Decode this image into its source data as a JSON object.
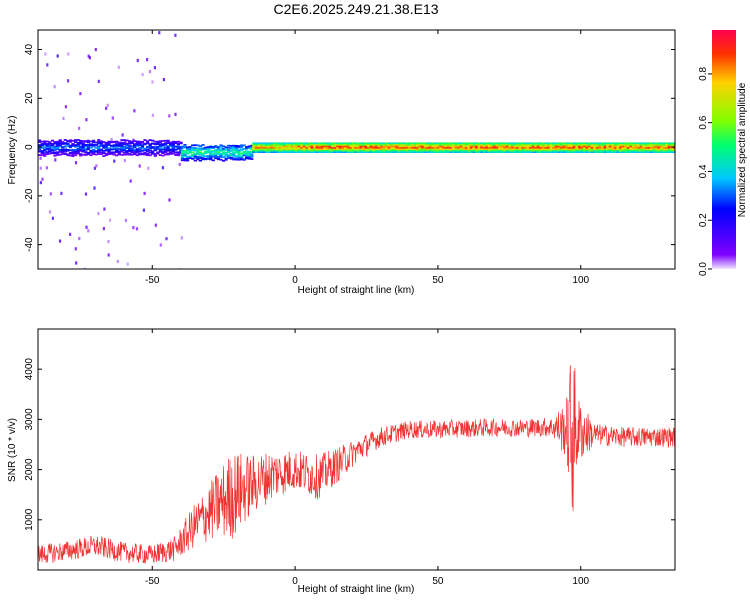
{
  "chart_data": [
    {
      "type": "heatmap",
      "title": "C2E6.2025.249.21.38.E13",
      "xlabel": "Height of straight line (km)",
      "ylabel": "Frequency (Hz)",
      "xlim": [
        -90,
        133
      ],
      "ylim": [
        -50,
        48
      ],
      "xticks": [
        -50,
        0,
        50,
        100
      ],
      "yticks": [
        -40,
        -20,
        0,
        20,
        40
      ],
      "colorbar": {
        "label": "Normalized spectral amplitude",
        "range": [
          0,
          0.98
        ],
        "ticks": [
          "0.0",
          "0.2",
          "0.4",
          "0.6",
          "0.8"
        ],
        "colors": [
          "#f0e6ff",
          "#7f00ff",
          "#0000ff",
          "#00c8ff",
          "#00ff6e",
          "#82ff00",
          "#ffd200",
          "#ff3200",
          "#ff0050"
        ]
      },
      "segments": [
        {
          "x": [
            -90,
            -40
          ],
          "freq_center": 0,
          "band_halfwidth_hz": 3,
          "peak_amplitude": 0.35,
          "scatter_y": [
            -50,
            48
          ],
          "scatter_amplitude": 0.15
        },
        {
          "x": [
            -40,
            -15
          ],
          "freq_center": -2,
          "band_halfwidth_hz": 3,
          "peak_amplitude": 0.55
        },
        {
          "x": [
            -15,
            0
          ],
          "freq_center": 0,
          "band_halfwidth_hz": 2,
          "peak_amplitude": 0.9
        },
        {
          "x": [
            0,
            133
          ],
          "freq_center": 0,
          "band_halfwidth_hz": 2,
          "peak_amplitude": 0.98
        }
      ]
    },
    {
      "type": "line",
      "xlabel": "Height of straight line (km)",
      "ylabel": "SNR (10 * v/v)",
      "xlim": [
        -90,
        133
      ],
      "ylim": [
        0,
        4800
      ],
      "xticks": [
        -50,
        0,
        50,
        100
      ],
      "yticks": [
        1000,
        2000,
        3000,
        4000
      ],
      "color": "#f03232",
      "series": [
        {
          "x": [
            -90,
            -80,
            -70,
            -60,
            -50,
            -42,
            -35,
            -28,
            -22,
            -15,
            -8,
            0,
            8,
            15,
            22,
            30,
            40,
            50,
            60,
            70,
            80,
            90,
            95,
            97,
            99,
            105,
            115,
            125,
            133
          ],
          "y": [
            300,
            380,
            480,
            350,
            300,
            420,
            900,
            1250,
            1500,
            1700,
            1900,
            2000,
            1850,
            2100,
            2400,
            2650,
            2800,
            2800,
            2820,
            2840,
            2830,
            2850,
            2800,
            2750,
            2780,
            2700,
            2650,
            2650,
            2650
          ],
          "noise": [
            200,
            200,
            220,
            200,
            200,
            250,
            450,
            650,
            900,
            600,
            500,
            400,
            450,
            350,
            250,
            200,
            180,
            180,
            180,
            180,
            180,
            200,
            600,
            1900,
            700,
            220,
            200,
            200,
            200
          ]
        }
      ]
    }
  ]
}
